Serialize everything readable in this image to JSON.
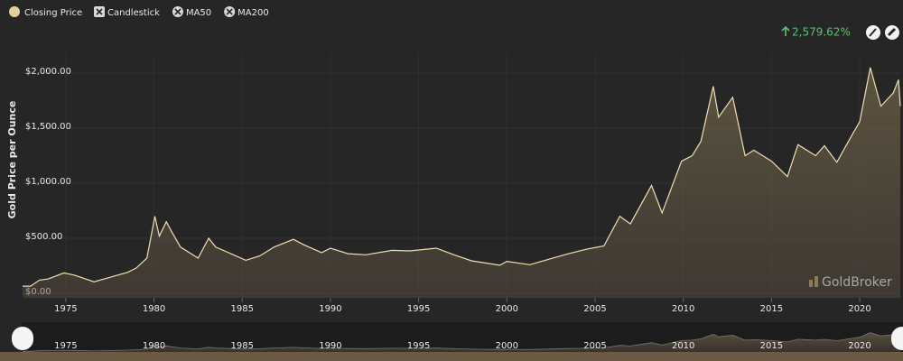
{
  "chart_data": {
    "type": "area",
    "y_label": "Gold Price per Ounce",
    "change_label": "2,579.62%",
    "watermark": "GoldBroker",
    "toggles": [
      "Candlestick",
      "MA50",
      "MA200"
    ],
    "x": [
      1972.55,
      1973.0,
      1973.5,
      1974.0,
      1974.9,
      1975.5,
      1976.6,
      1977.5,
      1978.5,
      1979.0,
      1979.6,
      1980.05,
      1980.3,
      1980.7,
      1981.0,
      1981.5,
      1982.5,
      1983.1,
      1983.5,
      1984.5,
      1985.2,
      1986.0,
      1986.8,
      1987.9,
      1988.5,
      1989.5,
      1990.0,
      1991.0,
      1992.0,
      1993.5,
      1994.5,
      1996.0,
      1997.0,
      1998.0,
      1999.6,
      2000.0,
      2001.3,
      2002.5,
      2003.5,
      2004.5,
      2005.5,
      2006.4,
      2007.0,
      2008.2,
      2008.8,
      2009.9,
      2010.5,
      2011.0,
      2011.7,
      2012.0,
      2012.8,
      2013.5,
      2014.0,
      2015.0,
      2015.9,
      2016.5,
      2017.5,
      2018.0,
      2018.7,
      2019.5,
      2020.0,
      2020.6,
      2021.2,
      2021.9,
      2022.2,
      2022.3
    ],
    "series": [
      {
        "name": "Closing Price",
        "color": "#f1deb0",
        "values": [
          65,
          65,
          120,
          130,
          185,
          165,
          105,
          145,
          190,
          230,
          320,
          700,
          520,
          650,
          560,
          420,
          320,
          500,
          420,
          350,
          300,
          340,
          420,
          490,
          440,
          370,
          410,
          360,
          350,
          390,
          385,
          410,
          350,
          295,
          255,
          290,
          260,
          315,
          360,
          400,
          430,
          700,
          630,
          980,
          730,
          1200,
          1250,
          1380,
          1880,
          1600,
          1780,
          1250,
          1300,
          1200,
          1060,
          1350,
          1250,
          1340,
          1190,
          1420,
          1560,
          2050,
          1700,
          1820,
          1940,
          1700
        ]
      }
    ],
    "xlim": [
      1972.55,
      2022.3
    ],
    "xticks": [
      1975,
      1980,
      1985,
      1990,
      1995,
      2000,
      2005,
      2010,
      2015,
      2020
    ],
    "ylim": [
      0,
      2100
    ],
    "yticks": [
      {
        "value": 0,
        "label": "$0.00"
      },
      {
        "value": 500,
        "label": "$500.00"
      },
      {
        "value": 1000,
        "label": "$1,000.00"
      },
      {
        "value": 1500,
        "label": "$1,500.00"
      },
      {
        "value": 2000,
        "label": "$2,000.00"
      }
    ],
    "grid": true
  }
}
